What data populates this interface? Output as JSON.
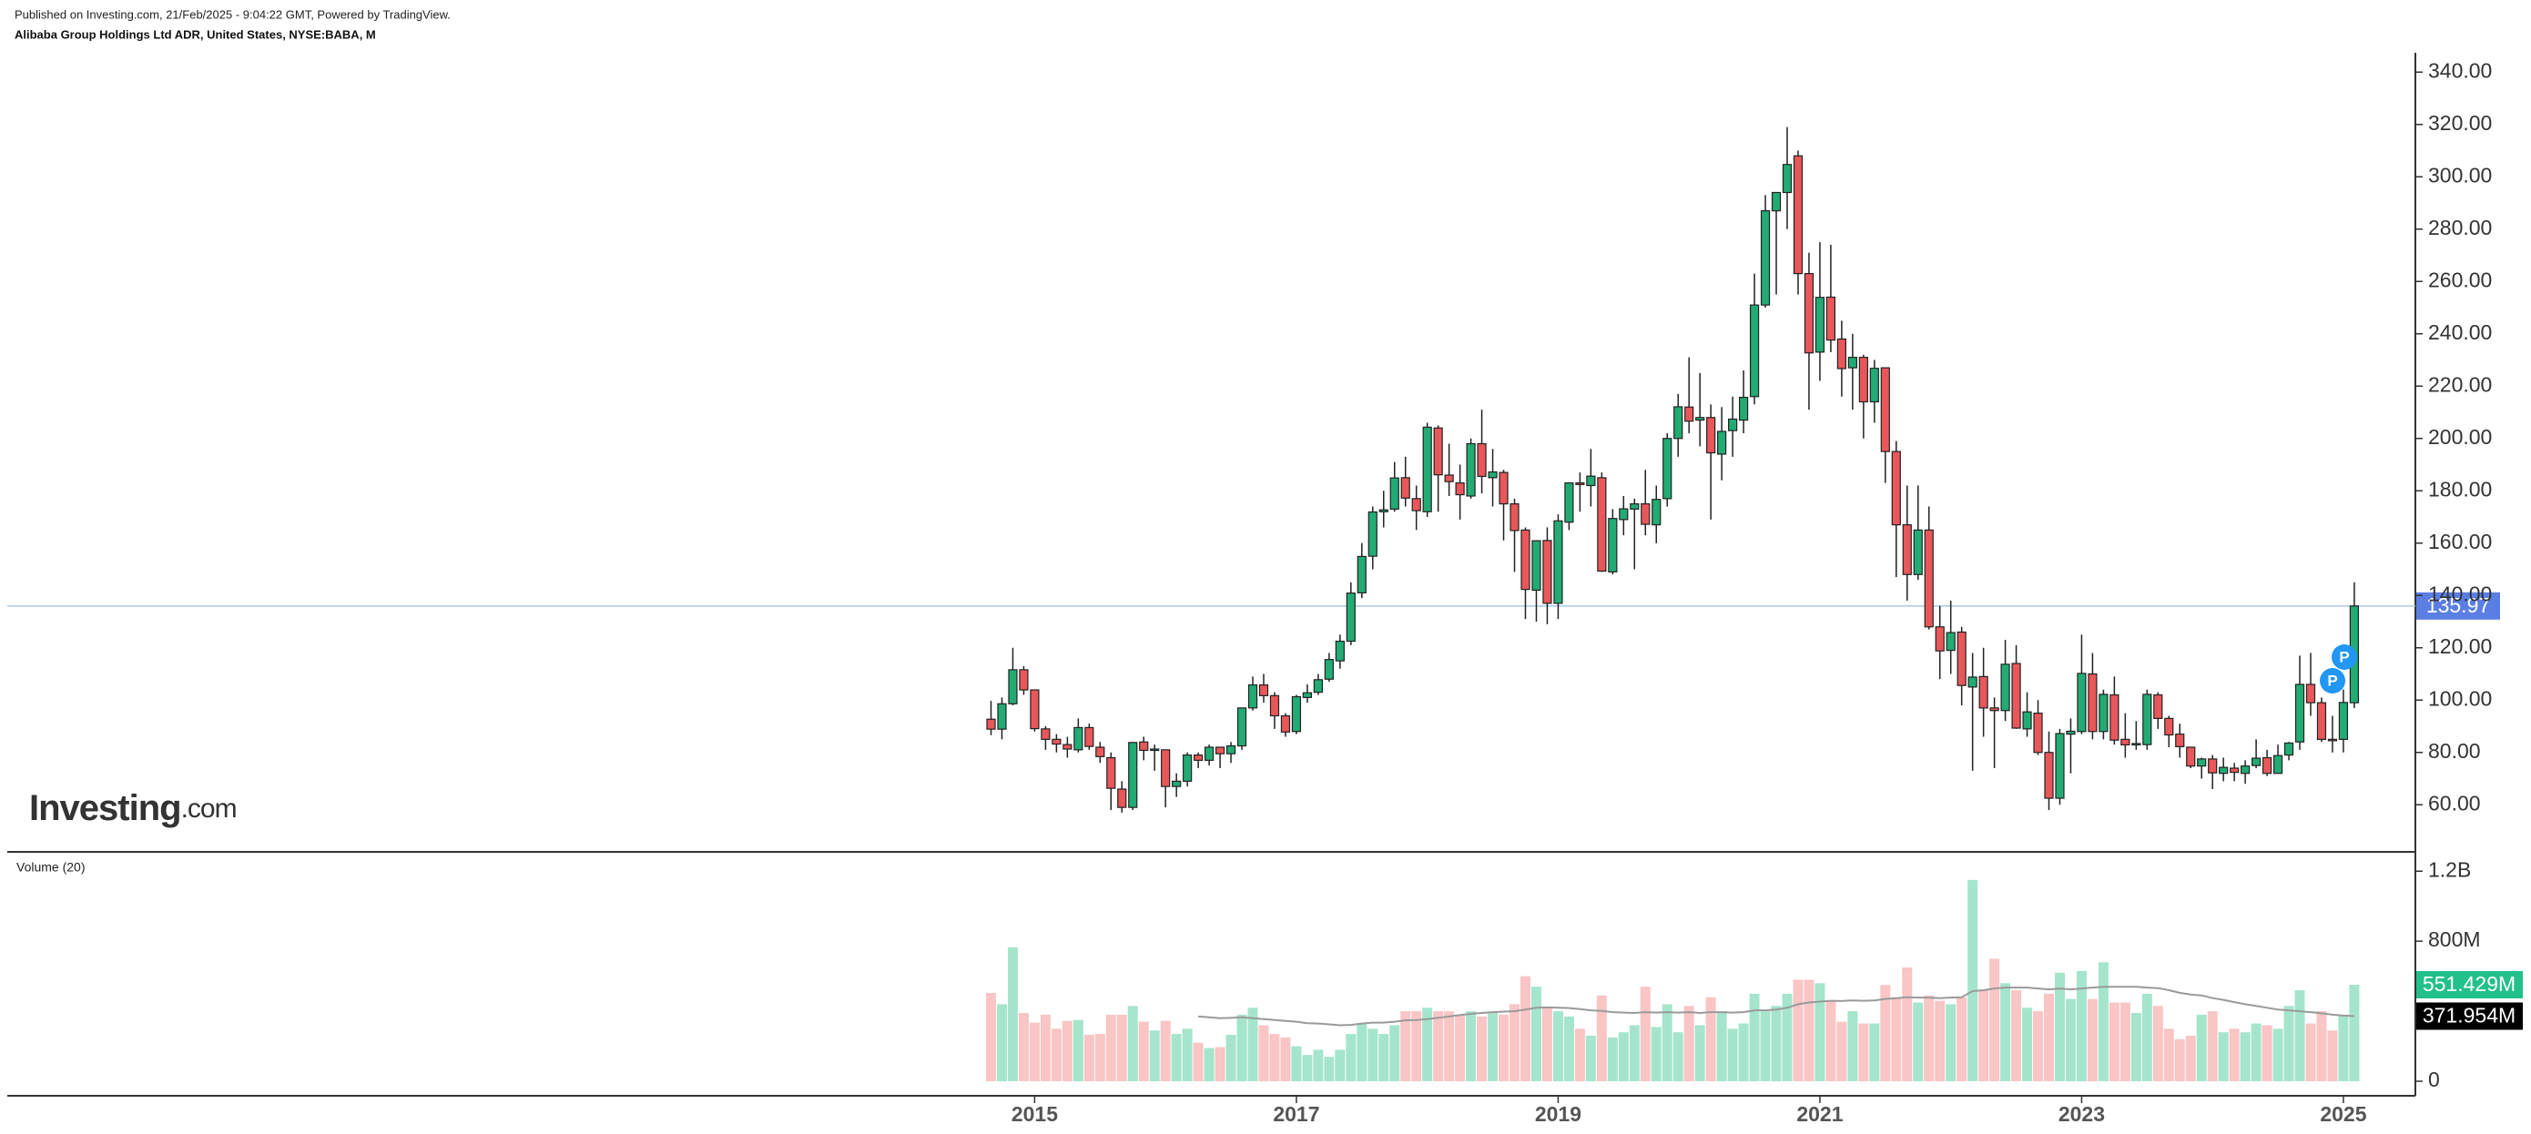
{
  "chart_data": {
    "type": "candlestick",
    "subtitle": "Published on Investing.com, 21/Feb/2025 - 9:04:22 GMT, Powered by TradingView.",
    "title": "Alibaba Group Holdings Ltd ADR, United States, NYSE:BABA, M",
    "logo": {
      "main": "Investing",
      "suffix": ".com"
    },
    "up_color": "#22ab74",
    "down_color": "#e8575a",
    "open": [
      92.7,
      88.9,
      98.6,
      111.6,
      103.9,
      89,
      85,
      83,
      81,
      89.5,
      82,
      78,
      66,
      59,
      84,
      81,
      81,
      67,
      69,
      79,
      77,
      82,
      79.5,
      82.5,
      97,
      105.8,
      101.7,
      94,
      88,
      101,
      103,
      108,
      115,
      122.5,
      141,
      155,
      172,
      173,
      185,
      177,
      172,
      204,
      186,
      183,
      178,
      198,
      185,
      187,
      175,
      165,
      142,
      161,
      137,
      168,
      183,
      182,
      185,
      149,
      169,
      173,
      175,
      167,
      177,
      200,
      212,
      207,
      208,
      194,
      203,
      207,
      216,
      251,
      287,
      294,
      308,
      263,
      233,
      254,
      238,
      227,
      231,
      214,
      227,
      195,
      167,
      148,
      165,
      128,
      119,
      126,
      105,
      109,
      97,
      96,
      114,
      89,
      95,
      80,
      62.5,
      87,
      88,
      110,
      88,
      102,
      85,
      83,
      83,
      102,
      93,
      87,
      82,
      74.8,
      77.5,
      72,
      74,
      72,
      75,
      78,
      72,
      79,
      84,
      106,
      99,
      85,
      85,
      99
    ],
    "high": [
      99.7,
      101,
      120,
      113,
      104,
      90,
      87,
      86,
      93,
      91,
      84,
      80,
      69,
      84,
      86,
      83,
      81,
      72,
      80,
      80,
      83,
      82,
      84,
      97,
      109,
      110,
      103,
      95,
      102,
      106,
      110,
      118,
      125,
      145,
      160,
      174,
      180,
      191,
      193,
      182,
      206,
      205,
      198,
      190,
      200,
      211,
      196,
      188,
      177,
      166,
      160,
      166,
      171,
      183,
      187,
      196,
      187,
      173,
      178,
      177,
      188,
      182,
      202,
      217,
      231,
      225,
      213,
      212,
      216,
      226,
      263,
      293,
      294,
      319,
      310,
      271,
      275,
      274,
      245,
      240,
      232,
      230,
      227,
      199,
      182,
      182,
      174,
      136,
      138,
      128,
      118,
      120,
      101,
      123,
      121,
      103,
      100,
      88,
      89,
      93,
      125,
      118,
      104,
      109,
      95,
      92,
      104,
      103,
      94,
      91,
      82,
      78,
      79,
      78,
      76,
      77,
      85,
      81,
      83,
      84,
      117,
      118,
      101,
      94,
      104,
      145
    ],
    "low": [
      86.6,
      85,
      98,
      102,
      88,
      81,
      80,
      78,
      80,
      81,
      76,
      58,
      57,
      58,
      77,
      73,
      59,
      63,
      67,
      74,
      75,
      74,
      76,
      81,
      96,
      99,
      89,
      86,
      87,
      99,
      102,
      107,
      112,
      121,
      139,
      150,
      166,
      172,
      174,
      165,
      170,
      172,
      178,
      169,
      177,
      179,
      174,
      161,
      149,
      131,
      130,
      129,
      131,
      165,
      172,
      174,
      149,
      148,
      163,
      150,
      163,
      160,
      174,
      193,
      202,
      197,
      169,
      184,
      193,
      202,
      213,
      250,
      255,
      280,
      255,
      211,
      222,
      233,
      216,
      211,
      200,
      206,
      183,
      147,
      138,
      146,
      127,
      108,
      110,
      98,
      73,
      86,
      74,
      92,
      89,
      86,
      79,
      58,
      60,
      72,
      87,
      85,
      85,
      83,
      78,
      81,
      81,
      89,
      82,
      78,
      74,
      70,
      66,
      69,
      69,
      68,
      74,
      71,
      72,
      77,
      81,
      94,
      84,
      80,
      80,
      97
    ],
    "close": [
      88.9,
      98.6,
      111.6,
      103.9,
      89.1,
      85,
      83.2,
      81.3,
      89.5,
      82.3,
      78.4,
      66.3,
      59,
      83.8,
      80.8,
      81.3,
      67,
      69,
      79,
      77,
      82,
      79.5,
      82.5,
      97,
      105.8,
      101.7,
      94,
      87.8,
      101.3,
      102.8,
      107.8,
      115.5,
      122.5,
      140.9,
      154.9,
      171.9,
      172.7,
      184.9,
      177.2,
      172.4,
      204.3,
      186.1,
      183.5,
      178.5,
      198,
      185.5,
      187.2,
      175,
      164.8,
      142.3,
      160.9,
      137,
      168.5,
      183,
      182.4,
      185.6,
      149.3,
      169.4,
      173.1,
      175,
      167.2,
      176.7,
      200,
      212.1,
      206.6,
      208,
      194.5,
      202.7,
      207.4,
      215.7,
      251,
      287,
      294,
      304.7,
      263,
      232.7,
      253.9,
      237.6,
      226.7,
      231,
      214,
      226.8,
      195,
      167,
      148,
      165,
      128,
      118.8,
      125.8,
      105.6,
      108.8,
      97,
      96,
      113.7,
      89.3,
      95.5,
      80,
      62.5,
      87.2,
      88.1,
      110.2,
      88,
      102.2,
      84.7,
      82.9,
      83.4,
      102.2,
      93,
      86.7,
      82.2,
      74.8,
      77.5,
      72.2,
      74.3,
      72.4,
      74.8,
      77.8,
      72,
      78.8,
      83.6,
      106,
      99,
      85,
      84.8,
      99.1,
      135.97
    ],
    "ylim": [
      42,
      346
    ],
    "yticks": [
      {
        "value": 60,
        "label": "60.00"
      },
      {
        "value": 80,
        "label": "80.00"
      },
      {
        "value": 100,
        "label": "100.00"
      },
      {
        "value": 120,
        "label": "120.00"
      },
      {
        "value": 140,
        "label": "140.00"
      },
      {
        "value": 160,
        "label": "160.00"
      },
      {
        "value": 180,
        "label": "180.00"
      },
      {
        "value": 200,
        "label": "200.00"
      },
      {
        "value": 220,
        "label": "220.00"
      },
      {
        "value": 240,
        "label": "240.00"
      },
      {
        "value": 260,
        "label": "260.00"
      },
      {
        "value": 280,
        "label": "280.00"
      },
      {
        "value": 300,
        "label": "300.00"
      },
      {
        "value": 320,
        "label": "320.00"
      },
      {
        "value": 340,
        "label": "340.00"
      }
    ],
    "xlim": [
      -90.2,
      130.6
    ],
    "xticks": [
      {
        "value": 4,
        "label": "2015"
      },
      {
        "value": 28,
        "label": "2017"
      },
      {
        "value": 52,
        "label": "2019"
      },
      {
        "value": 76,
        "label": "2021"
      },
      {
        "value": 100,
        "label": "2023"
      },
      {
        "value": 124,
        "label": "2025"
      }
    ],
    "markers": [
      "P",
      "P"
    ],
    "volume": {
      "title": "Volume (20)",
      "up_color": "#a5e5cc",
      "down_color": "#f9c5c5",
      "values": [
        505000000,
        440000000,
        765000000,
        390000000,
        335000000,
        380000000,
        300000000,
        345000000,
        350000000,
        265000000,
        270000000,
        380000000,
        380000000,
        430000000,
        340000000,
        290000000,
        345000000,
        270000000,
        300000000,
        220000000,
        190000000,
        195000000,
        265000000,
        380000000,
        420000000,
        320000000,
        270000000,
        250000000,
        200000000,
        150000000,
        180000000,
        140000000,
        180000000,
        270000000,
        330000000,
        300000000,
        270000000,
        320000000,
        400000000,
        400000000,
        420000000,
        400000000,
        400000000,
        380000000,
        400000000,
        370000000,
        390000000,
        380000000,
        440000000,
        600000000,
        540000000,
        420000000,
        400000000,
        370000000,
        300000000,
        260000000,
        490000000,
        250000000,
        280000000,
        320000000,
        540000000,
        310000000,
        440000000,
        280000000,
        430000000,
        320000000,
        480000000,
        400000000,
        300000000,
        330000000,
        500000000,
        400000000,
        430000000,
        500000000,
        580000000,
        580000000,
        560000000,
        460000000,
        340000000,
        400000000,
        330000000,
        330000000,
        550000000,
        480000000,
        650000000,
        450000000,
        490000000,
        460000000,
        440000000,
        480000000,
        1150000000,
        520000000,
        700000000,
        560000000,
        520000000,
        420000000,
        400000000,
        500000000,
        620000000,
        470000000,
        630000000,
        470000000,
        680000000,
        450000000,
        450000000,
        390000000,
        500000000,
        430000000,
        300000000,
        240000000,
        260000000,
        380000000,
        400000000,
        280000000,
        300000000,
        280000000,
        330000000,
        320000000,
        300000000,
        430000000,
        520000000,
        330000000,
        400000000,
        290000000,
        380000000,
        551429000
      ],
      "value_labels": [
        null,
        null,
        null,
        null,
        null,
        null,
        null,
        null,
        null,
        null,
        null,
        null,
        null,
        null,
        null,
        null,
        null,
        null,
        null,
        null,
        null,
        null,
        null,
        null,
        null,
        null,
        null,
        null,
        null,
        null,
        null,
        null,
        null,
        null,
        null,
        null,
        null,
        null,
        null,
        null,
        null,
        null,
        null,
        null,
        null,
        null,
        null,
        null,
        null,
        null,
        null,
        null,
        null,
        null,
        null,
        null,
        null,
        null,
        null,
        null,
        null,
        null,
        null,
        null,
        null,
        null,
        null,
        null,
        null,
        null,
        null,
        null,
        null,
        null,
        null,
        null,
        null,
        null,
        null,
        null,
        null,
        null,
        null,
        null,
        null,
        null,
        null,
        null,
        null,
        null,
        null,
        null,
        null,
        null,
        null,
        null,
        null,
        null,
        null,
        null,
        null,
        null,
        null,
        null,
        null,
        null,
        null,
        null,
        null,
        null,
        null,
        null,
        null,
        null,
        null,
        null,
        null,
        null,
        null,
        null,
        null,
        null,
        null,
        null,
        null,
        "551.429M"
      ],
      "ma": {
        "color": "#9a9a9a",
        "values": [
          null,
          null,
          null,
          null,
          null,
          null,
          null,
          null,
          null,
          null,
          null,
          null,
          null,
          null,
          null,
          null,
          null,
          null,
          null,
          370000000,
          365000000,
          360000000,
          362000000,
          365000000,
          360000000,
          355000000,
          350000000,
          345000000,
          340000000,
          332000000,
          330000000,
          325000000,
          320000000,
          322000000,
          330000000,
          335000000,
          335000000,
          340000000,
          348000000,
          350000000,
          355000000,
          362000000,
          370000000,
          378000000,
          385000000,
          390000000,
          395000000,
          398000000,
          400000000,
          410000000,
          420000000,
          422000000,
          420000000,
          418000000,
          412000000,
          405000000,
          402000000,
          395000000,
          392000000,
          390000000,
          395000000,
          392000000,
          395000000,
          392000000,
          395000000,
          390000000,
          395000000,
          395000000,
          392000000,
          395000000,
          405000000,
          405000000,
          410000000,
          420000000,
          440000000,
          450000000,
          455000000,
          460000000,
          458000000,
          462000000,
          460000000,
          462000000,
          470000000,
          475000000,
          480000000,
          478000000,
          478000000,
          475000000,
          478000000,
          480000000,
          515000000,
          520000000,
          530000000,
          535000000,
          535000000,
          535000000,
          530000000,
          525000000,
          530000000,
          525000000,
          530000000,
          535000000,
          540000000,
          540000000,
          540000000,
          540000000,
          535000000,
          532000000,
          520000000,
          505000000,
          495000000,
          490000000,
          475000000,
          465000000,
          452000000,
          440000000,
          430000000,
          420000000,
          410000000,
          405000000,
          400000000,
          395000000,
          388000000,
          380000000,
          375000000,
          371954000
        ],
        "value_labels": [
          null,
          null,
          null,
          null,
          null,
          null,
          null,
          null,
          null,
          null,
          null,
          null,
          null,
          null,
          null,
          null,
          null,
          null,
          null,
          null,
          null,
          null,
          null,
          null,
          null,
          null,
          null,
          null,
          null,
          null,
          null,
          null,
          null,
          null,
          null,
          null,
          null,
          null,
          null,
          null,
          null,
          null,
          null,
          null,
          null,
          null,
          null,
          null,
          null,
          null,
          null,
          null,
          null,
          null,
          null,
          null,
          null,
          null,
          null,
          null,
          null,
          null,
          null,
          null,
          null,
          null,
          null,
          null,
          null,
          null,
          null,
          null,
          null,
          null,
          null,
          null,
          null,
          null,
          null,
          null,
          null,
          null,
          null,
          null,
          null,
          null,
          null,
          null,
          null,
          null,
          null,
          null,
          null,
          null,
          null,
          null,
          null,
          null,
          null,
          null,
          null,
          null,
          null,
          null,
          null,
          null,
          null,
          null,
          null,
          null,
          null,
          null,
          null,
          null,
          null,
          null,
          null,
          null,
          null,
          null,
          null,
          null,
          null,
          null,
          null,
          "371.954M"
        ]
      },
      "y2lim": [
        -83000000,
        1300000000
      ],
      "y2ticks": [
        0,
        {
          "value": 800000000,
          "label": "800M"
        },
        {
          "value": 1200000000,
          "label": "1.2B"
        }
      ]
    }
  }
}
